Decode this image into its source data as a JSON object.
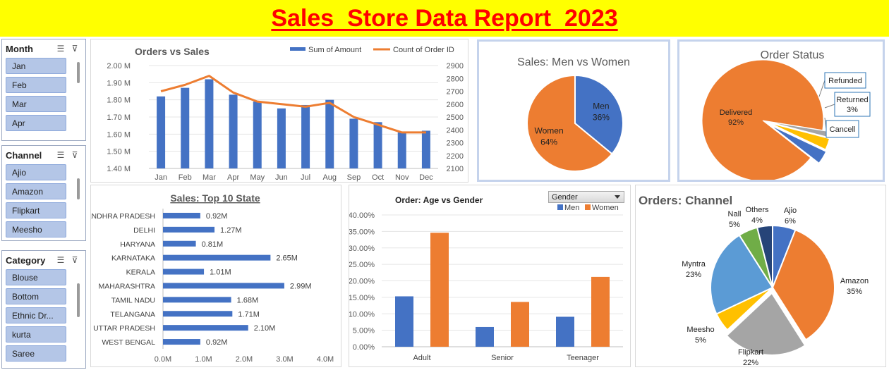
{
  "header": {
    "title": "Sales  Store Data Report  2023"
  },
  "slicers": [
    {
      "title": "Month",
      "items": [
        "Jan",
        "Feb",
        "Mar",
        "Apr"
      ]
    },
    {
      "title": "Channel",
      "items": [
        "Ajio",
        "Amazon",
        "Flipkart",
        "Meesho"
      ]
    },
    {
      "title": "Category",
      "items": [
        "Blouse",
        "Bottom",
        "Ethnic Dr...",
        "kurta",
        "Saree"
      ]
    }
  ],
  "colors": {
    "blue": "#4472c4",
    "orange": "#ed7d31",
    "gray": "#a5a5a5",
    "yellow": "#ffc000",
    "lightblue": "#5b9bd5",
    "green": "#70ad47",
    "navy": "#264478",
    "banner": "#ffff00",
    "title_red": "#ff0000"
  },
  "chart_data": [
    {
      "type": "bar",
      "title": "Orders vs  Sales",
      "categories": [
        "Jan",
        "Feb",
        "Mar",
        "Apr",
        "May",
        "Jun",
        "Jul",
        "Aug",
        "Sep",
        "Oct",
        "Nov",
        "Dec"
      ],
      "series": [
        {
          "name": "Sum of Amount",
          "type": "bar",
          "axis": "left",
          "values": [
            1.82,
            1.87,
            1.92,
            1.83,
            1.79,
            1.75,
            1.77,
            1.8,
            1.69,
            1.67,
            1.61,
            1.62
          ]
        },
        {
          "name": "Count of Order ID",
          "type": "line",
          "axis": "right",
          "values": [
            2700,
            2750,
            2820,
            2690,
            2620,
            2600,
            2580,
            2610,
            2500,
            2440,
            2380,
            2380
          ]
        }
      ],
      "left_axis": {
        "min": 1.4,
        "max": 2.0,
        "ticks": [
          "1.40 M",
          "1.50 M",
          "1.60 M",
          "1.70 M",
          "1.80 M",
          "1.90 M",
          "2.00 M"
        ]
      },
      "right_axis": {
        "min": 2100,
        "max": 2900,
        "ticks": [
          "2100",
          "2200",
          "2300",
          "2400",
          "2500",
          "2600",
          "2700",
          "2800",
          "2900"
        ]
      },
      "legend": "top-right"
    },
    {
      "type": "pie",
      "title": "Sales: Men vs Women",
      "slices": [
        {
          "name": "Men",
          "value": 36,
          "label": "36%"
        },
        {
          "name": "Women",
          "value": 64,
          "label": "64%"
        }
      ]
    },
    {
      "type": "pie",
      "title": "Order Status",
      "slices": [
        {
          "name": "Delivered",
          "value": 92,
          "label": "92%"
        },
        {
          "name": "Refunded",
          "value": 1.5,
          "label": ""
        },
        {
          "name": "Returned",
          "value": 3,
          "label": "3%"
        },
        {
          "name": "Cancell",
          "value": 3.5,
          "label": ""
        }
      ]
    },
    {
      "type": "bar",
      "orientation": "horizontal",
      "title": "Sales: Top 10 State",
      "categories": [
        "ANDHRA PRADESH",
        "DELHI",
        "HARYANA",
        "KARNATAKA",
        "KERALA",
        "MAHARASHTRA",
        "TAMIL NADU",
        "TELANGANA",
        "UTTAR PRADESH",
        "WEST BENGAL"
      ],
      "values": [
        0.92,
        1.27,
        0.81,
        2.65,
        1.01,
        2.99,
        1.68,
        1.71,
        2.1,
        0.92
      ],
      "value_labels": [
        "0.92M",
        "1.27M",
        "0.81M",
        "2.65M",
        "1.01M",
        "2.99M",
        "1.68M",
        "1.71M",
        "2.10M",
        "0.92M"
      ],
      "x_axis": {
        "min": 0,
        "max": 4,
        "ticks": [
          "0.0M",
          "1.0M",
          "2.0M",
          "3.0M",
          "4.0M"
        ]
      }
    },
    {
      "type": "bar",
      "title": "Order: Age vs Gender",
      "filter_label": "Gender",
      "categories": [
        "Adult",
        "Senior",
        "Teenager"
      ],
      "series": [
        {
          "name": "Men",
          "values": [
            15.3,
            6.0,
            9.1
          ]
        },
        {
          "name": "Women",
          "values": [
            34.6,
            13.6,
            21.2
          ]
        }
      ],
      "y_axis": {
        "min": 0,
        "max": 40,
        "ticks": [
          "0.00%",
          "5.00%",
          "10.00%",
          "15.00%",
          "20.00%",
          "25.00%",
          "30.00%",
          "35.00%",
          "40.00%"
        ]
      },
      "legend": "top-right"
    },
    {
      "type": "pie",
      "title": "Orders: Channel",
      "slices": [
        {
          "name": "Ajio",
          "value": 6,
          "label": "6%"
        },
        {
          "name": "Amazon",
          "value": 35,
          "label": "35%"
        },
        {
          "name": "Flipkart",
          "value": 22,
          "label": "22%"
        },
        {
          "name": "Meesho",
          "value": 5,
          "label": "5%"
        },
        {
          "name": "Myntra",
          "value": 23,
          "label": "23%"
        },
        {
          "name": "Nall",
          "value": 5,
          "label": "5%"
        },
        {
          "name": "Others",
          "value": 4,
          "label": "4%"
        }
      ]
    }
  ]
}
